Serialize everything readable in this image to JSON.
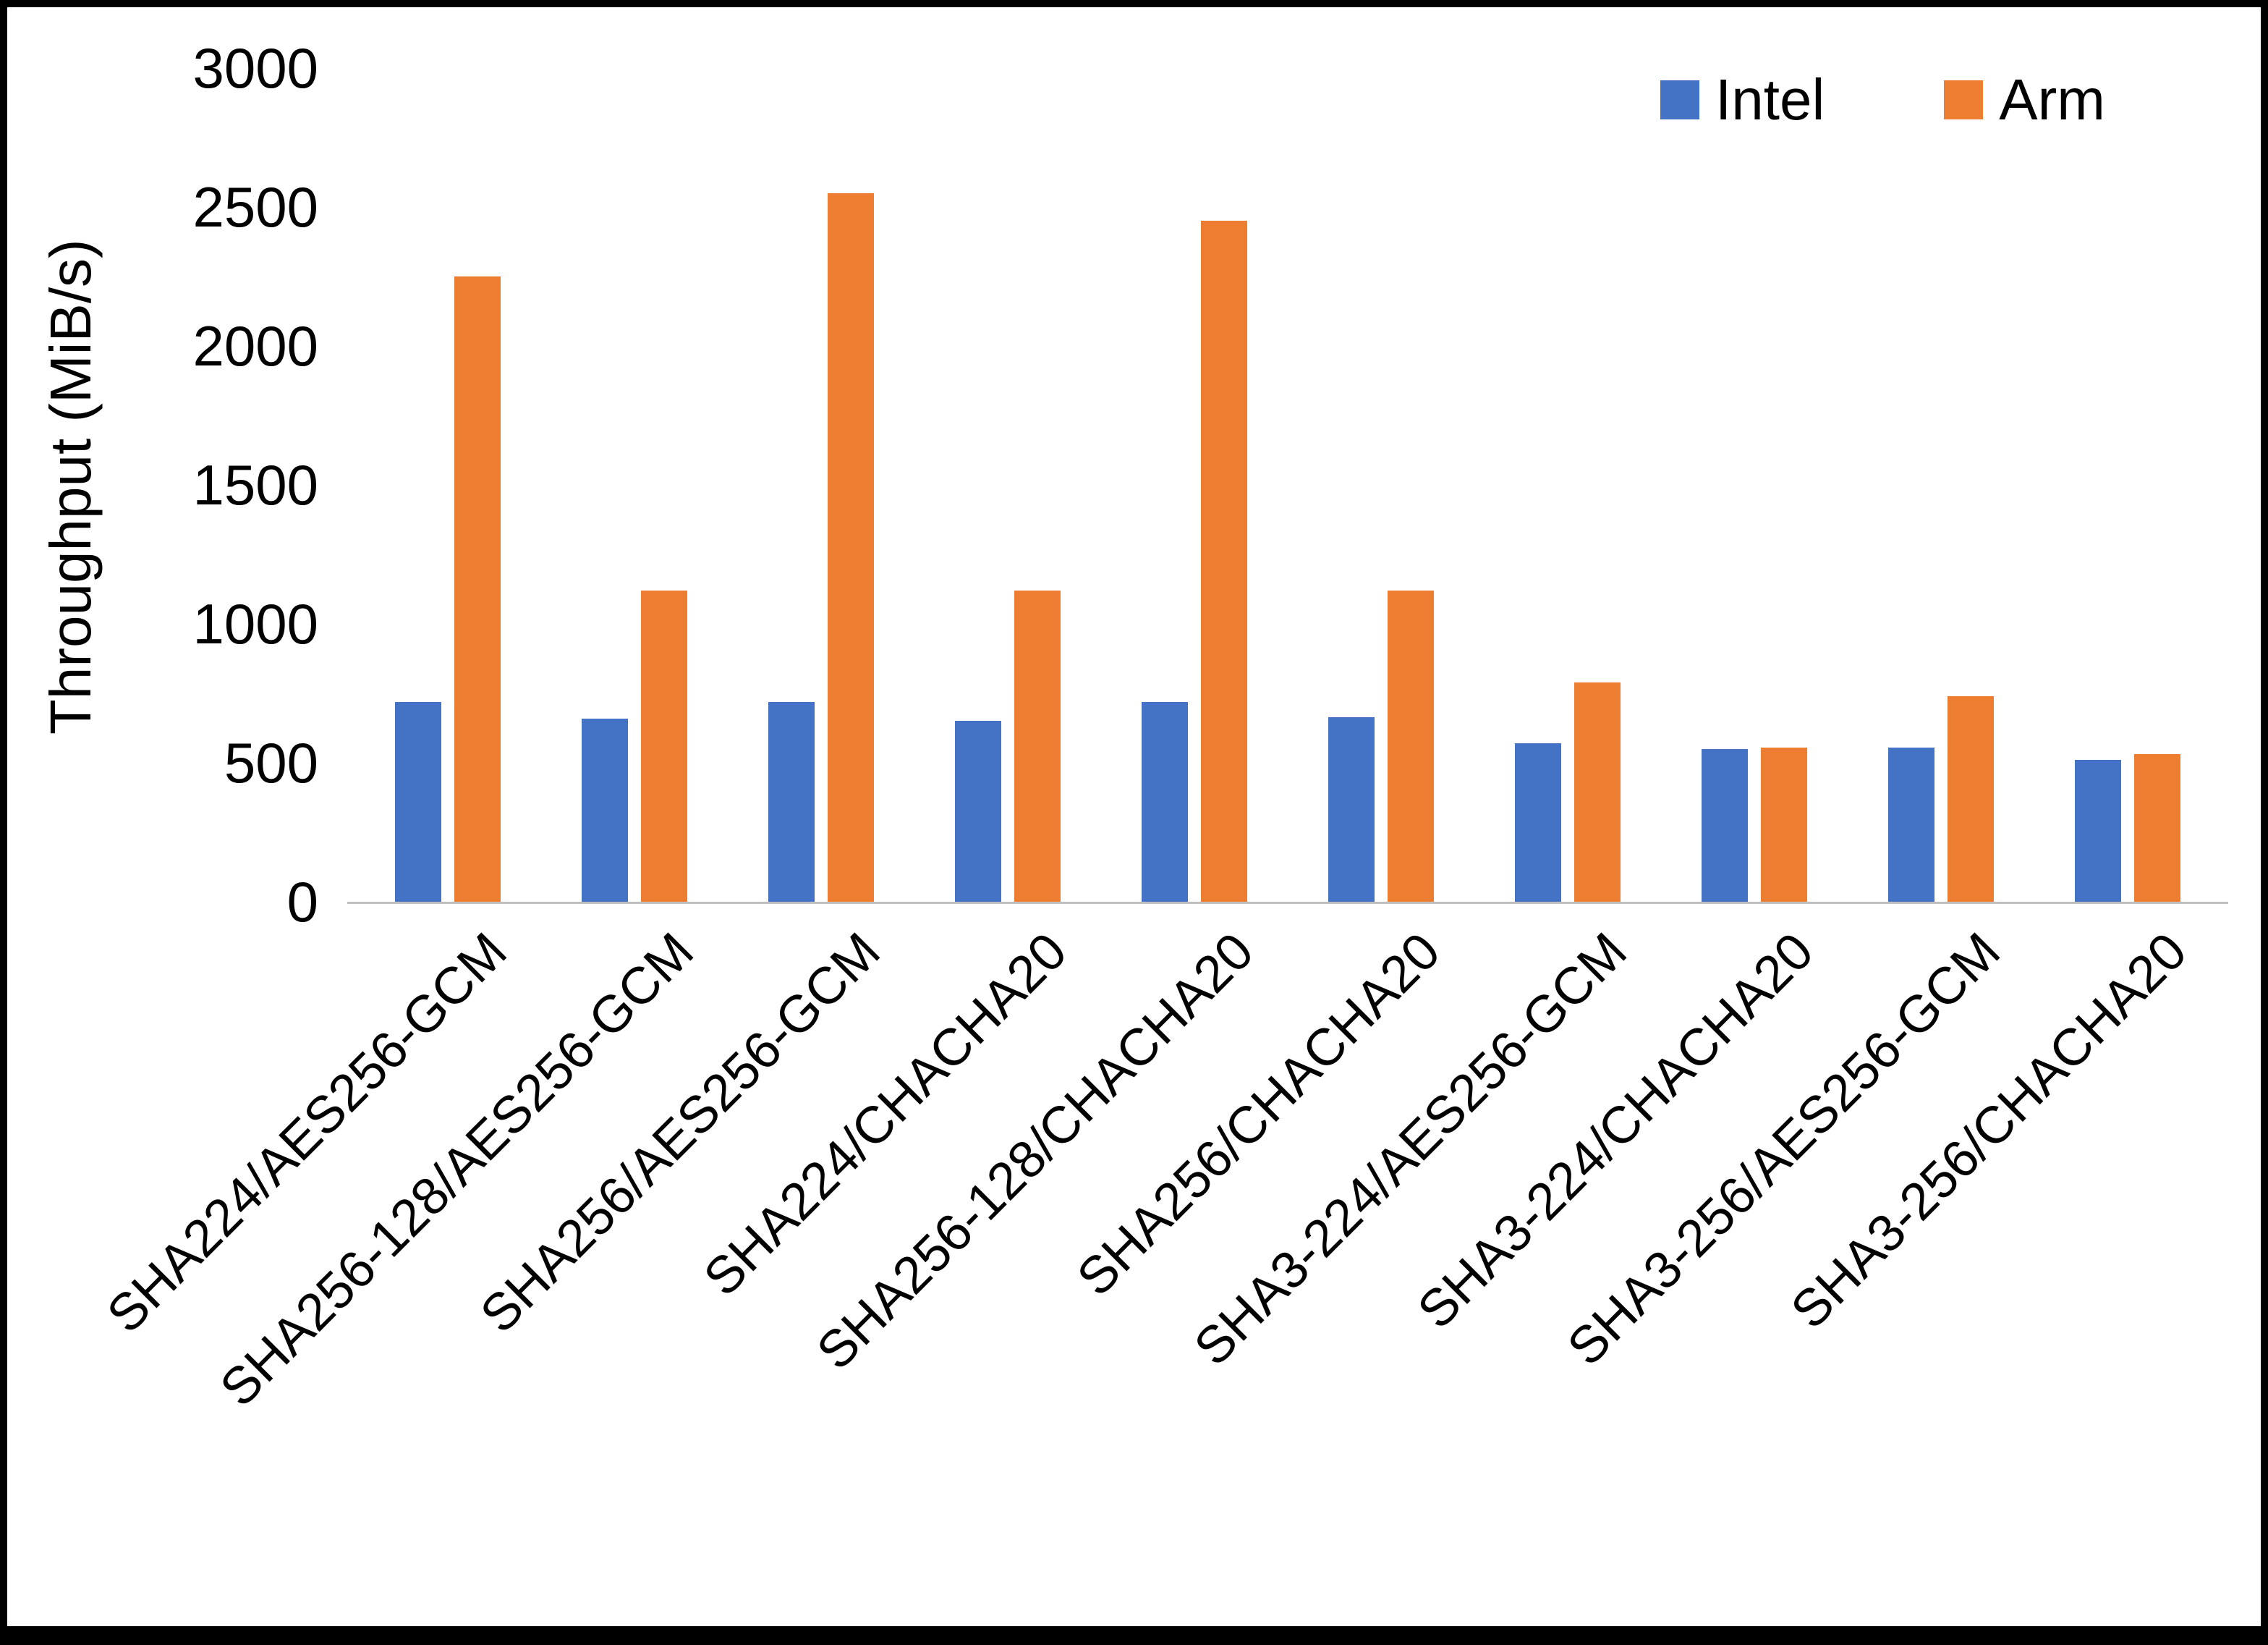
{
  "chart_data": {
    "type": "bar",
    "title": "",
    "ylabel": "Throughput (MiB/s)",
    "xlabel": "",
    "ylim": [
      0,
      3000
    ],
    "yticks": [
      0,
      500,
      1000,
      1500,
      2000,
      2500,
      3000
    ],
    "grid": false,
    "legend_position": "top-right",
    "categories": [
      "SHA224/AES256-GCM",
      "SHA256-128/AES256-GCM",
      "SHA256/AES256-GCM",
      "SHA224/CHACHA20",
      "SHA256-128/CHACHA20",
      "SHA256/CHACHA20",
      "SHA3-224/AES256-GCM",
      "SHA3-224/CHACHA20",
      "SHA3-256/AES256-GCM",
      "SHA3-256/CHACHA20"
    ],
    "series": [
      {
        "name": "Intel",
        "color": "#4472C4",
        "values": [
          720,
          660,
          720,
          650,
          720,
          665,
          570,
          550,
          555,
          510
        ]
      },
      {
        "name": "Arm",
        "color": "#ED7D31",
        "values": [
          2250,
          1120,
          2550,
          1120,
          2450,
          1120,
          790,
          555,
          740,
          530
        ]
      }
    ],
    "colors": {
      "axis_line": "#BFBFBF",
      "text": "#000000",
      "background": "#FFFFFF"
    }
  }
}
